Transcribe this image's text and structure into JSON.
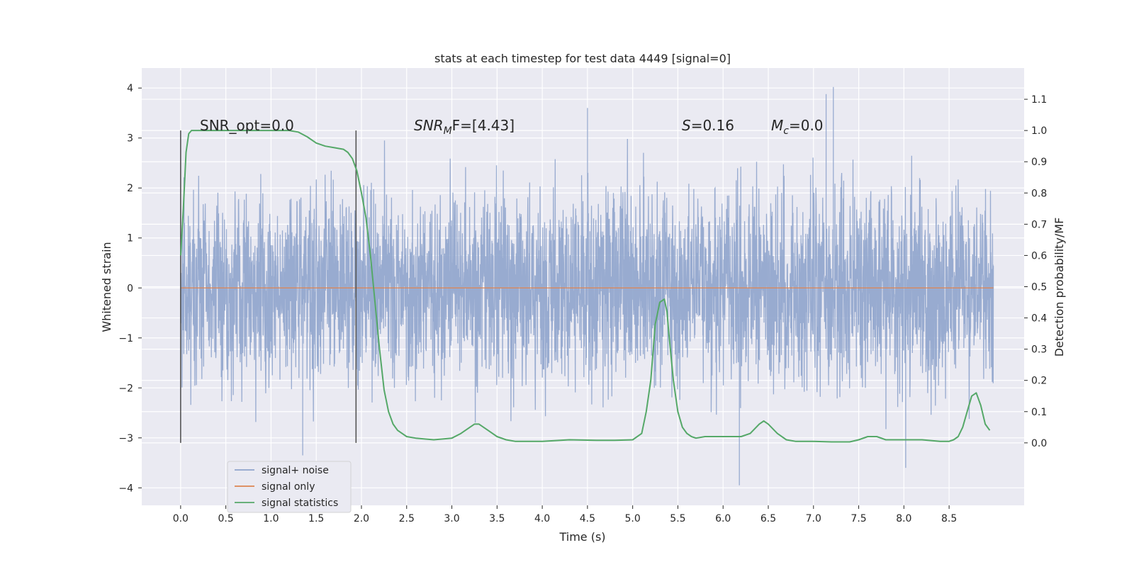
{
  "chart_data": {
    "type": "line",
    "title": "stats at each timestep for test data 4449 [signal=0]",
    "xlabel": "Time (s)",
    "ylabel_left": "Whitened strain",
    "ylabel_right": "Detection probability/MF",
    "xlim": [
      -0.43,
      9.33
    ],
    "ylim_left": [
      -4.35,
      4.4
    ],
    "ylim_right": [
      -0.2,
      1.2
    ],
    "x_ticks": [
      "0.0",
      "0.5",
      "1.0",
      "1.5",
      "2.0",
      "2.5",
      "3.0",
      "3.5",
      "4.0",
      "4.5",
      "5.0",
      "5.5",
      "6.0",
      "6.5",
      "7.0",
      "7.5",
      "8.0",
      "8.5"
    ],
    "y_left_ticks": [
      "4",
      "3",
      "2",
      "1",
      "0",
      "−1",
      "−2",
      "−3",
      "−4"
    ],
    "y_right_ticks": [
      "1.1",
      "1.0",
      "0.9",
      "0.8",
      "0.7",
      "0.6",
      "0.5",
      "0.4",
      "0.3",
      "0.2",
      "0.1",
      "0.0"
    ],
    "grid": true,
    "legend_position": "lower-left",
    "series": [
      {
        "name": "signal+ noise",
        "color": "#8fa4cc",
        "axis": "left",
        "description_x_range": [
          0.0,
          8.99
        ],
        "typical_abs_max": 2.0,
        "extreme_values": [
          {
            "x": 7.22,
            "y": 4.02
          },
          {
            "x": 7.14,
            "y": 3.88
          },
          {
            "x": 4.5,
            "y": 3.6
          },
          {
            "x": 6.18,
            "y": -3.95
          },
          {
            "x": 1.35,
            "y": -3.35
          },
          {
            "x": 8.02,
            "y": -3.6
          }
        ]
      },
      {
        "name": "signal only",
        "color": "#dd8452",
        "axis": "left",
        "x": [
          0.0,
          8.99
        ],
        "y": [
          0.0,
          0.0
        ]
      },
      {
        "name": "signal statistics",
        "color": "#55a868",
        "axis": "right",
        "x": [
          0.0,
          0.03,
          0.06,
          0.09,
          0.12,
          0.15,
          0.2,
          0.3,
          0.5,
          0.8,
          1.0,
          1.2,
          1.3,
          1.4,
          1.5,
          1.6,
          1.7,
          1.8,
          1.85,
          1.9,
          1.95,
          2.0,
          2.05,
          2.1,
          2.15,
          2.2,
          2.25,
          2.3,
          2.35,
          2.4,
          2.5,
          2.6,
          2.8,
          3.0,
          3.1,
          3.2,
          3.25,
          3.3,
          3.4,
          3.5,
          3.6,
          3.7,
          3.8,
          4.0,
          4.3,
          4.6,
          4.8,
          5.0,
          5.1,
          5.15,
          5.2,
          5.25,
          5.3,
          5.35,
          5.38,
          5.4,
          5.45,
          5.5,
          5.55,
          5.6,
          5.65,
          5.7,
          5.8,
          6.0,
          6.2,
          6.3,
          6.4,
          6.45,
          6.5,
          6.6,
          6.7,
          6.8,
          7.0,
          7.2,
          7.4,
          7.5,
          7.6,
          7.7,
          7.8,
          8.0,
          8.2,
          8.4,
          8.5,
          8.55,
          8.6,
          8.65,
          8.7,
          8.75,
          8.8,
          8.85,
          8.9,
          8.95
        ],
        "y": [
          0.6,
          0.75,
          0.93,
          0.99,
          1.0,
          1.0,
          1.0,
          1.0,
          1.0,
          1.0,
          1.0,
          1.0,
          0.995,
          0.98,
          0.96,
          0.95,
          0.945,
          0.94,
          0.93,
          0.91,
          0.87,
          0.8,
          0.72,
          0.6,
          0.45,
          0.3,
          0.17,
          0.1,
          0.06,
          0.04,
          0.02,
          0.015,
          0.01,
          0.015,
          0.03,
          0.05,
          0.06,
          0.06,
          0.04,
          0.02,
          0.01,
          0.005,
          0.005,
          0.005,
          0.01,
          0.008,
          0.008,
          0.01,
          0.03,
          0.1,
          0.2,
          0.38,
          0.45,
          0.46,
          0.42,
          0.35,
          0.2,
          0.1,
          0.05,
          0.03,
          0.02,
          0.015,
          0.02,
          0.02,
          0.02,
          0.03,
          0.06,
          0.07,
          0.06,
          0.03,
          0.01,
          0.005,
          0.005,
          0.003,
          0.003,
          0.01,
          0.02,
          0.02,
          0.01,
          0.01,
          0.01,
          0.005,
          0.005,
          0.01,
          0.02,
          0.05,
          0.1,
          0.15,
          0.16,
          0.12,
          0.06,
          0.04
        ]
      }
    ],
    "vlines": [
      {
        "x": 0.0,
        "y_range": [
          -3.1,
          3.15
        ],
        "color": "#555555"
      },
      {
        "x": 1.94,
        "y_range": [
          -3.1,
          3.15
        ],
        "color": "#555555"
      }
    ],
    "annotations": {
      "snr_opt": "SNR_opt=0.0",
      "snr_mf_base": "SNR",
      "snr_mf_sub": "M",
      "snr_mf_rest": "F=[4.43]",
      "s_sym": "S",
      "s_val": "=0.16",
      "mc_sym": "M",
      "mc_sub": "c",
      "mc_val": "=0.0"
    },
    "legend": [
      {
        "label": "signal+ noise",
        "color": "#8fa4cc"
      },
      {
        "label": "signal only",
        "color": "#dd8452"
      },
      {
        "label": "signal statistics",
        "color": "#55a868"
      }
    ]
  }
}
